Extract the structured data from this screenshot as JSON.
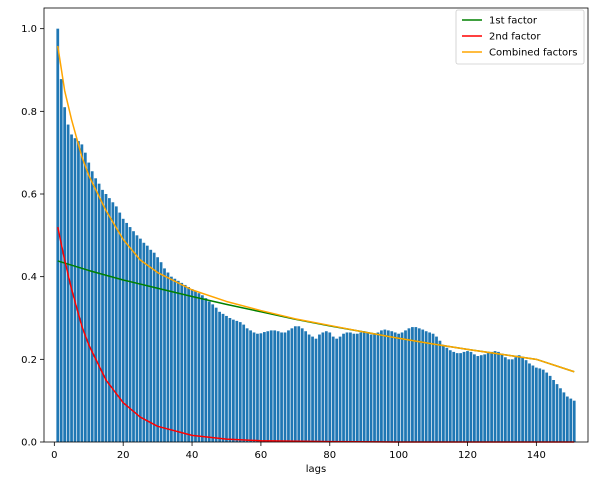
{
  "chart_data": {
    "type": "bar",
    "xlabel": "lags",
    "ylabel": "",
    "xlim": [
      -3,
      155
    ],
    "ylim": [
      0,
      1.05
    ],
    "xticks": [
      0,
      20,
      40,
      60,
      80,
      100,
      120,
      140
    ],
    "yticks": [
      0.0,
      0.2,
      0.4,
      0.6,
      0.8,
      1.0
    ],
    "xtick_labels": [
      "0",
      "20",
      "40",
      "60",
      "80",
      "100",
      "120",
      "140"
    ],
    "ytick_labels": [
      "0.0",
      "0.2",
      "0.4",
      "0.6",
      "0.8",
      "1.0"
    ],
    "grid": false,
    "legend_position": "top-right",
    "bar_color": "#1f77b4",
    "bars": {
      "x_start": 1,
      "values": [
        1.0,
        0.878,
        0.81,
        0.768,
        0.744,
        0.735,
        0.728,
        0.72,
        0.7,
        0.676,
        0.655,
        0.638,
        0.625,
        0.61,
        0.6,
        0.59,
        0.58,
        0.57,
        0.555,
        0.54,
        0.53,
        0.52,
        0.51,
        0.5,
        0.492,
        0.482,
        0.475,
        0.465,
        0.458,
        0.447,
        0.435,
        0.42,
        0.41,
        0.4,
        0.395,
        0.39,
        0.385,
        0.38,
        0.375,
        0.37,
        0.365,
        0.36,
        0.355,
        0.348,
        0.34,
        0.333,
        0.325,
        0.315,
        0.31,
        0.305,
        0.3,
        0.296,
        0.293,
        0.29,
        0.284,
        0.275,
        0.27,
        0.265,
        0.262,
        0.263,
        0.266,
        0.268,
        0.27,
        0.27,
        0.268,
        0.265,
        0.265,
        0.27,
        0.275,
        0.28,
        0.28,
        0.275,
        0.268,
        0.26,
        0.255,
        0.25,
        0.26,
        0.265,
        0.268,
        0.265,
        0.255,
        0.25,
        0.255,
        0.262,
        0.265,
        0.265,
        0.262,
        0.262,
        0.265,
        0.268,
        0.265,
        0.26,
        0.262,
        0.265,
        0.27,
        0.272,
        0.27,
        0.268,
        0.265,
        0.262,
        0.265,
        0.27,
        0.275,
        0.278,
        0.278,
        0.275,
        0.272,
        0.268,
        0.265,
        0.262,
        0.255,
        0.245,
        0.235,
        0.228,
        0.222,
        0.218,
        0.215,
        0.215,
        0.218,
        0.22,
        0.218,
        0.212,
        0.208,
        0.21,
        0.212,
        0.215,
        0.218,
        0.22,
        0.218,
        0.212,
        0.205,
        0.2,
        0.2,
        0.205,
        0.21,
        0.205,
        0.198,
        0.19,
        0.185,
        0.18,
        0.178,
        0.175,
        0.168,
        0.16,
        0.15,
        0.14,
        0.13,
        0.12,
        0.11,
        0.105,
        0.1
      ]
    },
    "series": [
      {
        "name": "1st factor",
        "color": "#008000",
        "x": [
          1,
          10,
          20,
          30,
          40,
          50,
          60,
          70,
          80,
          90,
          100,
          110,
          120,
          130,
          140,
          151
        ],
        "y": [
          0.438,
          0.415,
          0.392,
          0.372,
          0.352,
          0.333,
          0.315,
          0.297,
          0.281,
          0.266,
          0.251,
          0.237,
          0.224,
          0.212,
          0.2,
          0.17
        ]
      },
      {
        "name": "2nd factor",
        "color": "#ff0000",
        "x": [
          1,
          3,
          5,
          8,
          10,
          15,
          20,
          25,
          30,
          40,
          50,
          60,
          80,
          100,
          151
        ],
        "y": [
          0.52,
          0.44,
          0.37,
          0.28,
          0.235,
          0.15,
          0.095,
          0.06,
          0.038,
          0.016,
          0.007,
          0.003,
          0.001,
          0.0,
          0.0
        ]
      },
      {
        "name": "Combined factors",
        "color": "#ffa500",
        "x": [
          1,
          3,
          5,
          8,
          10,
          15,
          20,
          25,
          30,
          40,
          50,
          60,
          70,
          80,
          90,
          100,
          110,
          120,
          130,
          140,
          151
        ],
        "y": [
          0.958,
          0.85,
          0.78,
          0.69,
          0.645,
          0.56,
          0.49,
          0.44,
          0.41,
          0.368,
          0.34,
          0.318,
          0.298,
          0.282,
          0.266,
          0.251,
          0.237,
          0.224,
          0.212,
          0.2,
          0.17
        ]
      }
    ]
  }
}
